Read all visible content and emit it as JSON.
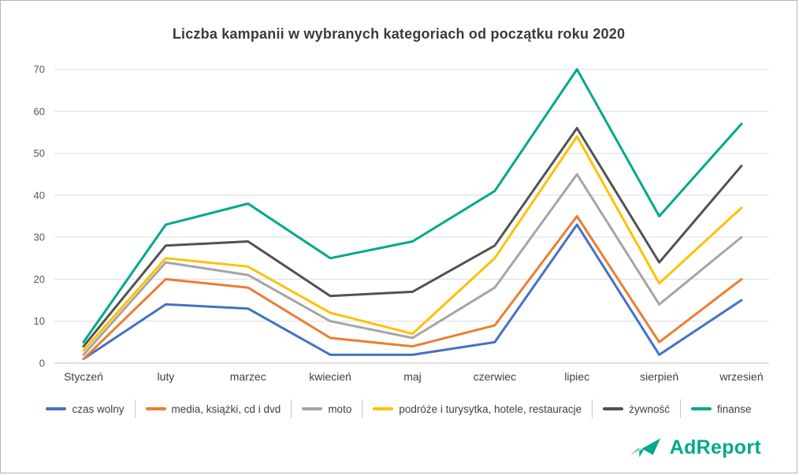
{
  "title": "Liczba kampanii w wybranych kategoriach od początku roku 2020",
  "logo": {
    "text": "AdReport"
  },
  "chart_data": {
    "type": "line",
    "title": "Liczba kampanii w wybranych kategoriach od początku roku 2020",
    "categories": [
      "Styczeń",
      "luty",
      "marzec",
      "kwiecień",
      "maj",
      "czerwiec",
      "lipiec",
      "sierpień",
      "wrzesień"
    ],
    "series": [
      {
        "name": "czas wolny",
        "color": "#4472C4",
        "values": [
          1,
          14,
          13,
          2,
          2,
          5,
          33,
          2,
          15
        ]
      },
      {
        "name": "media, książki, cd i dvd",
        "color": "#ED7D31",
        "values": [
          1,
          20,
          18,
          6,
          4,
          9,
          35,
          5,
          20
        ]
      },
      {
        "name": "moto",
        "color": "#A5A5A5",
        "values": [
          2,
          24,
          21,
          10,
          6,
          18,
          45,
          14,
          30
        ]
      },
      {
        "name": "podróże i turysytka, hotele, restauracje",
        "color": "#FFC000",
        "values": [
          3,
          25,
          23,
          12,
          7,
          25,
          54,
          19,
          37
        ]
      },
      {
        "name": "żywność",
        "color": "#525252",
        "values": [
          4,
          28,
          29,
          16,
          17,
          28,
          56,
          24,
          47
        ]
      },
      {
        "name": "finanse",
        "color": "#00A88C",
        "values": [
          5,
          33,
          38,
          25,
          29,
          41,
          70,
          35,
          57
        ]
      }
    ],
    "xlabel": "",
    "ylabel": "",
    "ylim": [
      0,
      70
    ],
    "yticks": [
      0,
      10,
      20,
      30,
      40,
      50,
      60,
      70
    ],
    "grid": true,
    "legend_position": "bottom"
  }
}
